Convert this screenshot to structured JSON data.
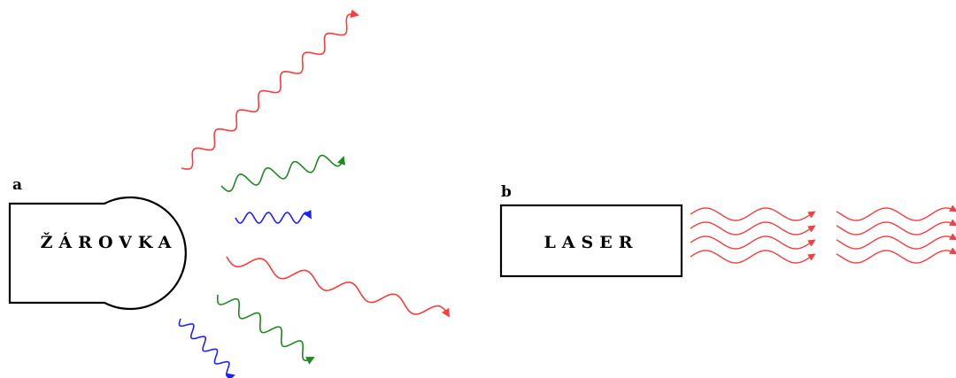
{
  "panel_a": {
    "label": "a",
    "source_text": "ŽÁROVKA"
  },
  "panel_b": {
    "label": "b",
    "source_text": "LASER"
  },
  "colors": {
    "red": "#ff3b3b",
    "green": "#1f8a1f",
    "blue": "#2020ff",
    "outline": "#000000"
  }
}
